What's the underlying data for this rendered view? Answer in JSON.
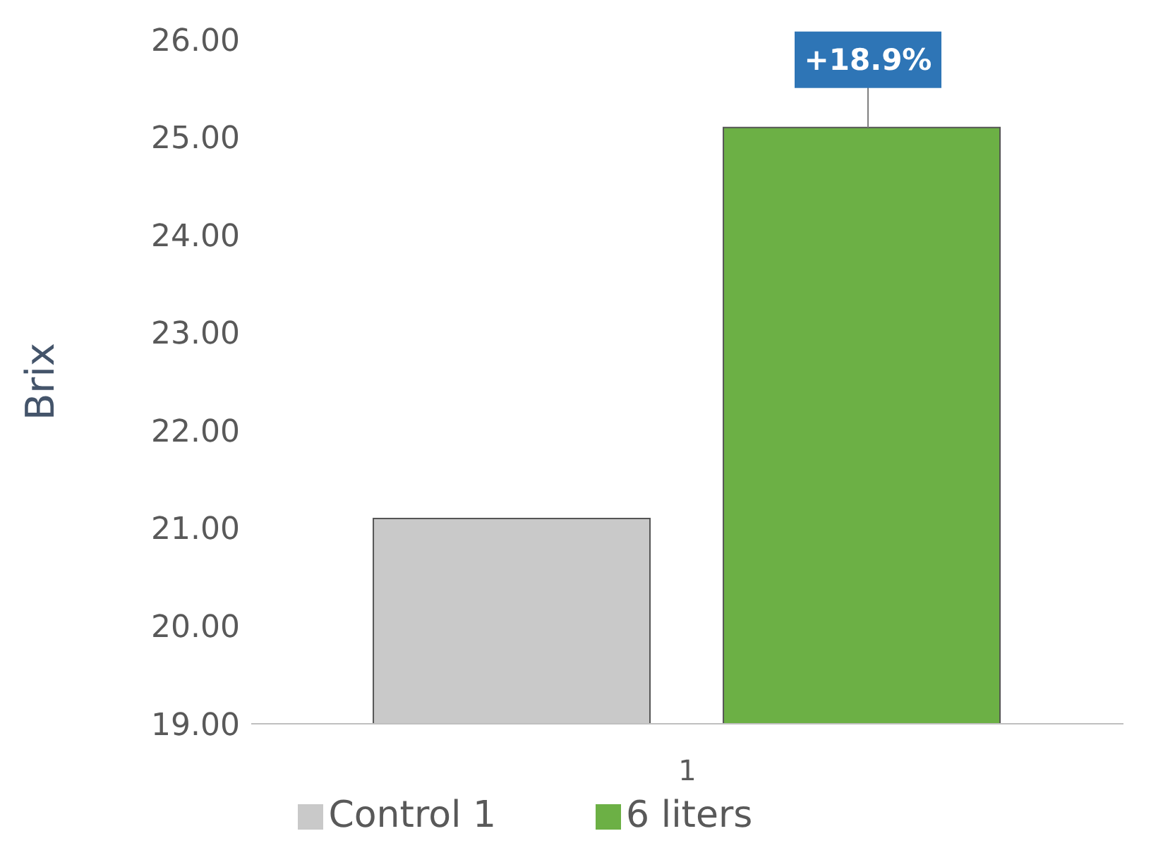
{
  "chart_data": {
    "type": "bar",
    "ylabel": "Brix",
    "categories": [
      "1"
    ],
    "series": [
      {
        "name": "Control 1",
        "color": "#c9c9c9",
        "values": [
          21.1
        ]
      },
      {
        "name": "6 liters",
        "color": "#6cb045",
        "values": [
          25.1
        ]
      }
    ],
    "ylim": [
      19,
      26
    ],
    "yticks": [
      {
        "value": 19,
        "label": "19.00"
      },
      {
        "value": 20,
        "label": "20.00"
      },
      {
        "value": 21,
        "label": "21.00"
      },
      {
        "value": 22,
        "label": "22.00"
      },
      {
        "value": 23,
        "label": "23.00"
      },
      {
        "value": 24,
        "label": "24.00"
      },
      {
        "value": 25,
        "label": "25.00"
      },
      {
        "value": 26,
        "label": "26.00"
      }
    ],
    "annotations": [
      "+18.9%"
    ],
    "grid": false,
    "legend": "bottom"
  }
}
